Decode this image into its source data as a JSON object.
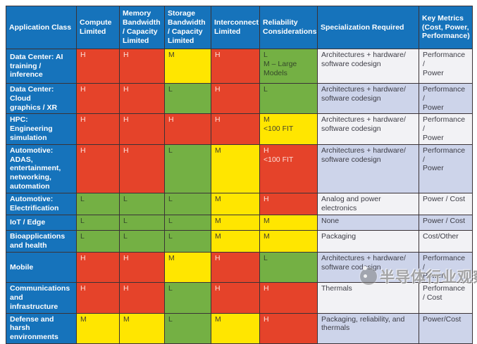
{
  "colors": {
    "header_blue": "#1673bb",
    "high_red": "#e5432a",
    "medium_yellow": "#ffe600",
    "low_green": "#74b044",
    "alt_row_lavender": "#cdd4ea",
    "alt_row_light": "#f2f2f5"
  },
  "watermark": {
    "text": "半导体行业观察"
  },
  "chart_data": {
    "type": "table",
    "columns": [
      "Application Class",
      "Compute\nLimited",
      "Memory\nBandwidth\n/ Capacity\nLimited",
      "Storage\nBandwidth\n/ Capacity\nLimited",
      "Interconnect\nLimited",
      "Reliability\nConsiderations",
      "Specialization Required",
      "Key Metrics\n(Cost, Power,\nPerformance)"
    ],
    "rows": [
      {
        "label": "Data Center: AI\ntraining / inference",
        "cells": [
          {
            "text": "H",
            "level": "red"
          },
          {
            "text": "H",
            "level": "red"
          },
          {
            "text": "M",
            "level": "yellow"
          },
          {
            "text": "H",
            "level": "red"
          },
          {
            "text": "L\nM – Large\nModels",
            "level": "green"
          }
        ],
        "specialization": "Architectures + hardware/\nsoftware codesign",
        "key_metrics": "Performance /\nPower"
      },
      {
        "label": "Data Center: Cloud\ngraphics / XR",
        "cells": [
          {
            "text": "H",
            "level": "red"
          },
          {
            "text": "H",
            "level": "red"
          },
          {
            "text": "L",
            "level": "green"
          },
          {
            "text": "H",
            "level": "red"
          },
          {
            "text": "L",
            "level": "green"
          }
        ],
        "specialization": "Architectures + hardware/\nsoftware codesign",
        "key_metrics": "Performance /\nPower"
      },
      {
        "label": "HPC: Engineering\nsimulation",
        "cells": [
          {
            "text": "H",
            "level": "red"
          },
          {
            "text": "H",
            "level": "red"
          },
          {
            "text": "H",
            "level": "red"
          },
          {
            "text": "H",
            "level": "red"
          },
          {
            "text": "M\n<100 FIT",
            "level": "yellow"
          }
        ],
        "specialization": "Architectures + hardware/\nsoftware codesign",
        "key_metrics": "Performance /\nPower"
      },
      {
        "label": "Automotive: ADAS,\nentertainment,\nnetworking,\nautomation",
        "cells": [
          {
            "text": "H",
            "level": "red"
          },
          {
            "text": "H",
            "level": "red"
          },
          {
            "text": "L",
            "level": "green"
          },
          {
            "text": "M",
            "level": "yellow"
          },
          {
            "text": "H\n<100 FIT",
            "level": "red"
          }
        ],
        "specialization": "Architectures + hardware/\nsoftware codesign",
        "key_metrics": "Performance /\nPower"
      },
      {
        "label": "Automotive:\nElectrification",
        "cells": [
          {
            "text": "L",
            "level": "green"
          },
          {
            "text": "L",
            "level": "green"
          },
          {
            "text": "L",
            "level": "green"
          },
          {
            "text": "M",
            "level": "yellow"
          },
          {
            "text": "H",
            "level": "red"
          }
        ],
        "specialization": "Analog and power\nelectronics",
        "key_metrics": "Power / Cost"
      },
      {
        "label": "IoT / Edge",
        "cells": [
          {
            "text": "L",
            "level": "green"
          },
          {
            "text": "L",
            "level": "green"
          },
          {
            "text": "L",
            "level": "green"
          },
          {
            "text": "M",
            "level": "yellow"
          },
          {
            "text": "M",
            "level": "yellow"
          }
        ],
        "specialization": "None",
        "key_metrics": "Power / Cost"
      },
      {
        "label": "Bioapplications\nand health",
        "cells": [
          {
            "text": "L",
            "level": "green"
          },
          {
            "text": "L",
            "level": "green"
          },
          {
            "text": "L",
            "level": "green"
          },
          {
            "text": "M",
            "level": "yellow"
          },
          {
            "text": "M",
            "level": "yellow"
          }
        ],
        "specialization": "Packaging",
        "key_metrics": "Cost/Other"
      },
      {
        "label": "Mobile",
        "cells": [
          {
            "text": "H",
            "level": "red"
          },
          {
            "text": "H",
            "level": "red"
          },
          {
            "text": "M",
            "level": "yellow"
          },
          {
            "text": "H",
            "level": "red"
          },
          {
            "text": "L",
            "level": "green"
          }
        ],
        "specialization": "Architectures + hardware/\nsoftware codesign",
        "key_metrics": "Performance /\nPower"
      },
      {
        "label": "Communications\nand infrastructure",
        "cells": [
          {
            "text": "H",
            "level": "red"
          },
          {
            "text": "H",
            "level": "red"
          },
          {
            "text": "L",
            "level": "green"
          },
          {
            "text": "H",
            "level": "red"
          },
          {
            "text": "H",
            "level": "red"
          }
        ],
        "specialization": "Thermals",
        "key_metrics": "Performance\n/ Cost"
      },
      {
        "label": "Defense and harsh\nenvironments",
        "cells": [
          {
            "text": "M",
            "level": "yellow"
          },
          {
            "text": "M",
            "level": "yellow"
          },
          {
            "text": "L",
            "level": "green"
          },
          {
            "text": "M",
            "level": "yellow"
          },
          {
            "text": "H",
            "level": "red"
          }
        ],
        "specialization": "Packaging, reliability, and\nthermals",
        "key_metrics": "Power/Cost"
      }
    ]
  }
}
